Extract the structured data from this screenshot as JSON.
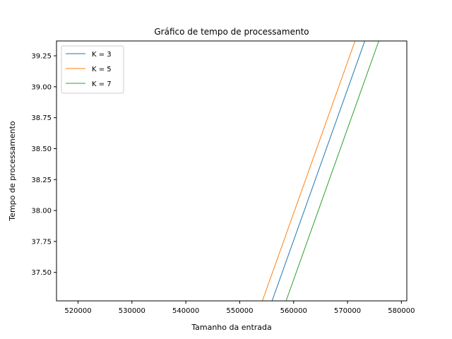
{
  "chart_data": {
    "type": "line",
    "title": "Gráfico de tempo de processamento",
    "xlabel": "Tamanho da entrada",
    "ylabel": "Tempo de processamento",
    "xlim": [
      516000,
      581000
    ],
    "ylim": [
      37.27,
      39.37
    ],
    "xticks": [
      520000,
      530000,
      540000,
      550000,
      560000,
      570000,
      580000
    ],
    "yticks": [
      37.5,
      37.75,
      38.0,
      38.25,
      38.5,
      38.75,
      39.0,
      39.25
    ],
    "xtick_labels": [
      "520000",
      "530000",
      "540000",
      "550000",
      "560000",
      "570000",
      "580000"
    ],
    "ytick_labels": [
      "37.50",
      "37.75",
      "38.00",
      "38.25",
      "38.50",
      "38.75",
      "39.00",
      "39.25"
    ],
    "grid": false,
    "legend_position": "top-left",
    "series": [
      {
        "name": "K = 3",
        "color": "#1f77b4",
        "x": [
          556000,
          573200
        ],
        "y": [
          37.27,
          39.37
        ]
      },
      {
        "name": "K = 5",
        "color": "#ff7f0e",
        "x": [
          554200,
          571400
        ],
        "y": [
          37.27,
          39.37
        ]
      },
      {
        "name": "K = 7",
        "color": "#2ca02c",
        "x": [
          558600,
          575800
        ],
        "y": [
          37.27,
          39.37
        ]
      }
    ]
  }
}
